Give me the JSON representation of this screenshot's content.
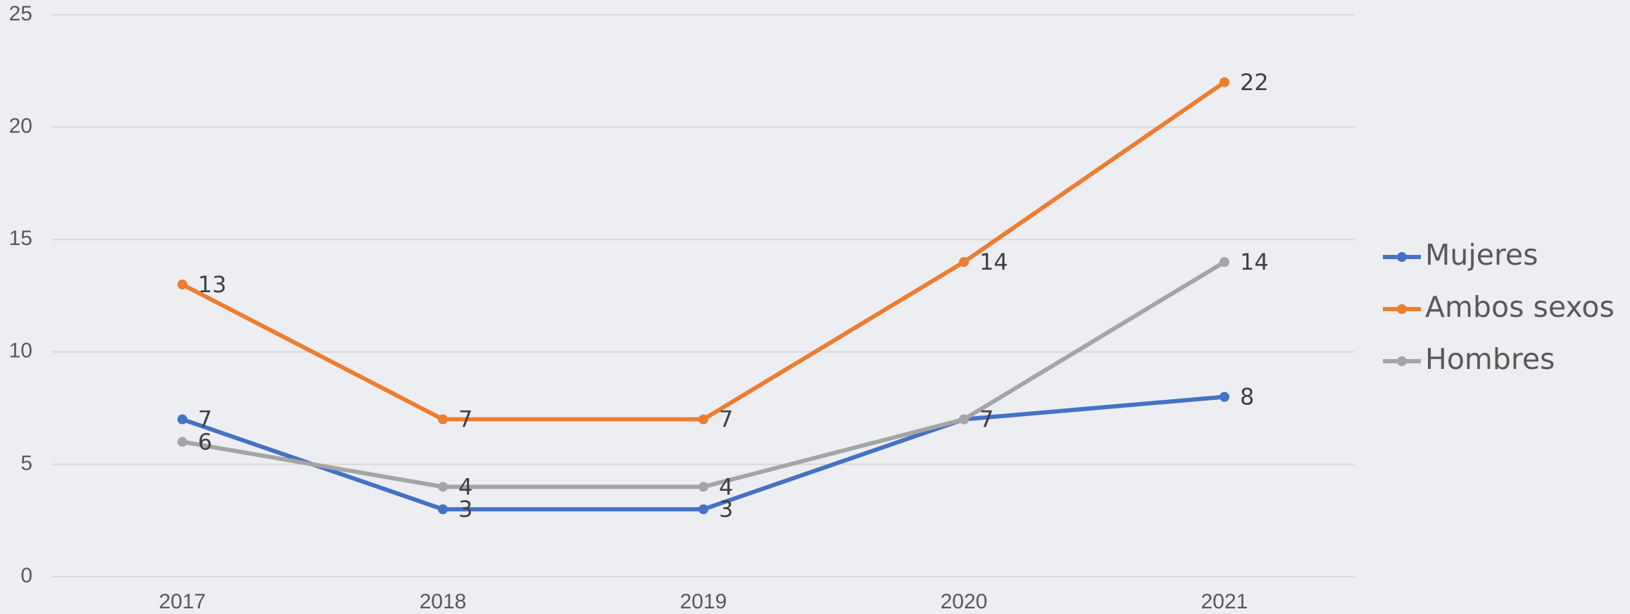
{
  "chart_data": {
    "type": "line",
    "categories": [
      "2017",
      "2018",
      "2019",
      "2020",
      "2021"
    ],
    "series": [
      {
        "name": "Mujeres",
        "color": "#4472c4",
        "values": [
          7,
          3,
          3,
          7,
          8
        ]
      },
      {
        "name": "Ambos sexos",
        "color": "#ed7d31",
        "values": [
          13,
          7,
          7,
          14,
          22
        ]
      },
      {
        "name": "Hombres",
        "color": "#a5a5a5",
        "values": [
          6,
          4,
          4,
          7,
          14
        ]
      }
    ],
    "ylim": [
      0,
      25
    ],
    "yticks": [
      0,
      5,
      10,
      15,
      20,
      25
    ],
    "grid": true,
    "legend": "right"
  }
}
